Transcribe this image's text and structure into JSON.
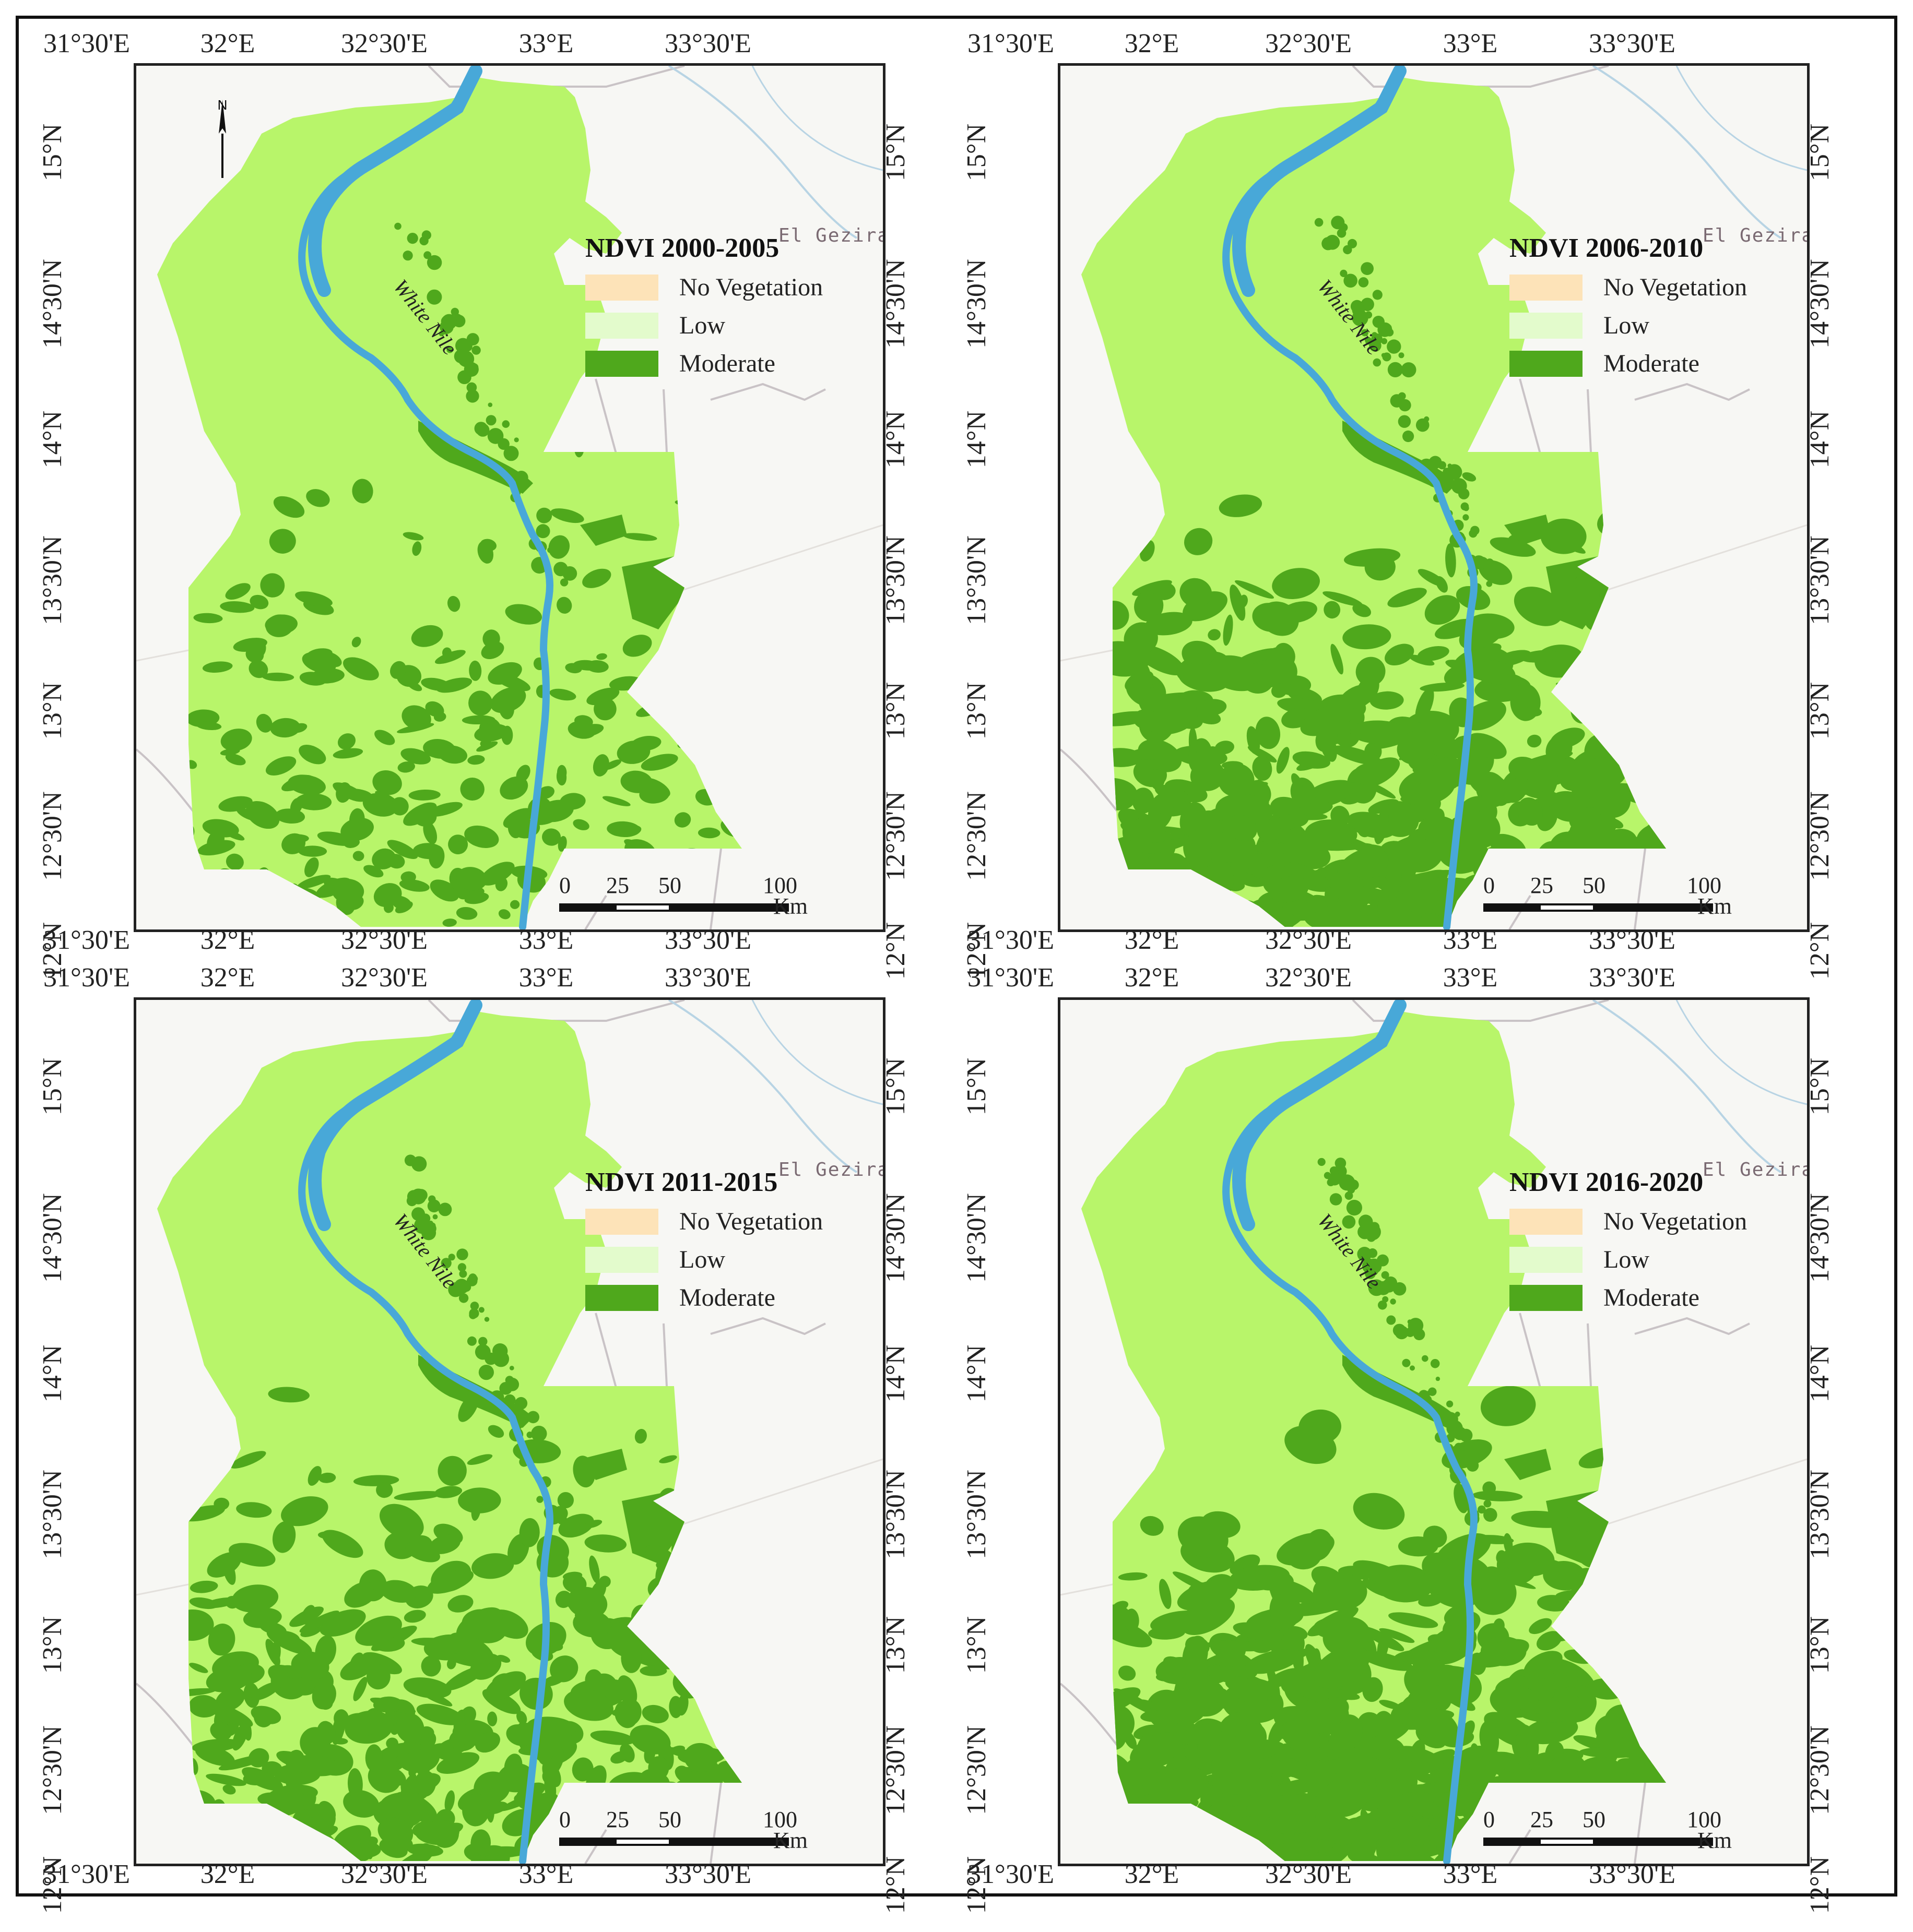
{
  "colors": {
    "no_vegetation": "#fde3b8",
    "low": "#b8f56a",
    "low_swatch": "#e3fbcc",
    "moderate": "#4fa81c",
    "river": "#48a8d8",
    "background": "#f7f7f4"
  },
  "legend_labels": [
    "No Vegetation",
    "Low",
    "Moderate"
  ],
  "place_label": "El Gezira",
  "river_label": "White Nile",
  "north_label": "N",
  "scale": {
    "ticks": [
      "0",
      "25",
      "50",
      "100"
    ],
    "unit": "Km"
  },
  "lon_labels": [
    "31°30'E",
    "32°E",
    "32°30'E",
    "33°E",
    "33°30'E"
  ],
  "lat_labels": [
    "15°N",
    "14°30'N",
    "14°N",
    "13°30'N",
    "13°N",
    "12°30'N",
    "12°N"
  ],
  "panels": [
    {
      "title": "NDVI 2000-2005",
      "moderate_level": 0.15
    },
    {
      "title": "NDVI 2006-2010",
      "moderate_level": 0.45
    },
    {
      "title": "NDVI 2011-2015",
      "moderate_level": 0.35
    },
    {
      "title": "NDVI 2016-2020",
      "moderate_level": 0.55
    }
  ]
}
